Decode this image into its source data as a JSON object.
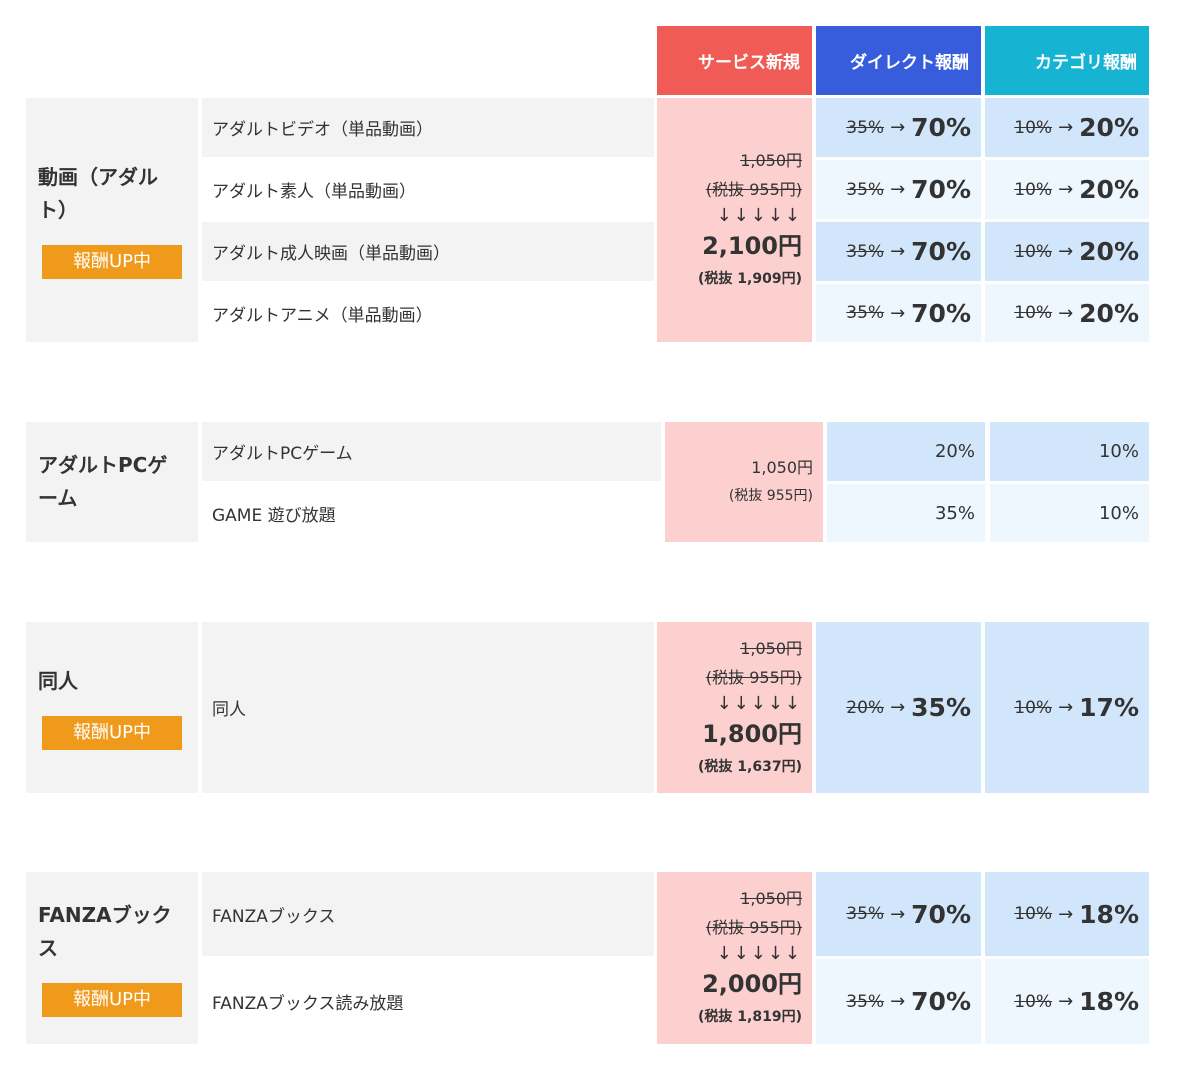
{
  "header": {
    "service_new": "サービス新規",
    "direct": "ダイレクト報酬",
    "category": "カテゴリ報酬"
  },
  "colors": {
    "service_new": "#f05c55",
    "direct": "#375cdc",
    "category": "#17b3d3",
    "badge": "#ef9a1a"
  },
  "sections": [
    {
      "category": "動画（アダルト）",
      "badge": "報酬UP中",
      "items": [
        "アダルトビデオ（単品動画）",
        "アダルト素人（単品動画）",
        "アダルト成人映画（単品動画）",
        "アダルトアニメ（単品動画）"
      ],
      "price": {
        "old": "1,050円",
        "old_tax": "(税抜 955円)",
        "arrows": "↓↓↓↓↓",
        "new": "2,100円",
        "new_tax": "(税抜 1,909円)"
      },
      "direct": [
        {
          "old": "35%",
          "new": "70%"
        },
        {
          "old": "35%",
          "new": "70%"
        },
        {
          "old": "35%",
          "new": "70%"
        },
        {
          "old": "35%",
          "new": "70%"
        }
      ],
      "category_rate": [
        {
          "old": "10%",
          "new": "20%"
        },
        {
          "old": "10%",
          "new": "20%"
        },
        {
          "old": "10%",
          "new": "20%"
        },
        {
          "old": "10%",
          "new": "20%"
        }
      ]
    },
    {
      "category": "アダルトPCゲーム",
      "items": [
        "アダルトPCゲーム",
        "GAME 遊び放題"
      ],
      "price": {
        "plain": "1,050円",
        "plain_tax": "(税抜 955円)"
      },
      "direct": [
        {
          "value": "20%"
        },
        {
          "value": "35%"
        }
      ],
      "category_rate": [
        {
          "value": "10%"
        },
        {
          "value": "10%"
        }
      ]
    },
    {
      "category": "同人",
      "badge": "報酬UP中",
      "items": [
        "同人"
      ],
      "price": {
        "old": "1,050円",
        "old_tax": "(税抜 955円)",
        "arrows": "↓↓↓↓↓",
        "new": "1,800円",
        "new_tax": "(税抜 1,637円)"
      },
      "direct": [
        {
          "old": "20%",
          "new": "35%"
        }
      ],
      "category_rate": [
        {
          "old": "10%",
          "new": "17%"
        }
      ]
    },
    {
      "category": "FANZAブックス",
      "badge": "報酬UP中",
      "items": [
        "FANZAブックス",
        "FANZAブックス読み放題"
      ],
      "price": {
        "old": "1,050円",
        "old_tax": "(税抜 955円)",
        "arrows": "↓↓↓↓↓",
        "new": "2,000円",
        "new_tax": "(税抜 1,819円)"
      },
      "direct": [
        {
          "old": "35%",
          "new": "70%"
        },
        {
          "old": "35%",
          "new": "70%"
        }
      ],
      "category_rate": [
        {
          "old": "10%",
          "new": "18%"
        },
        {
          "old": "10%",
          "new": "18%"
        }
      ]
    }
  ],
  "arrow": "→"
}
